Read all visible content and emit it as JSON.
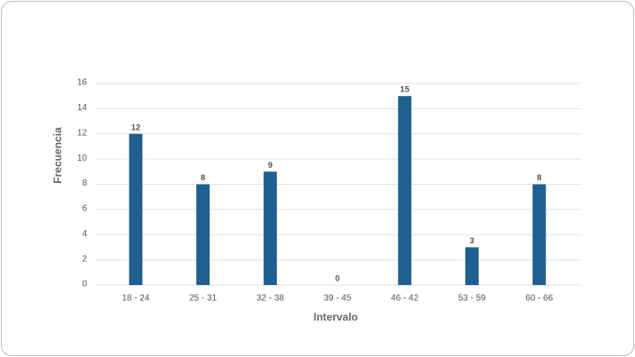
{
  "chart_data": {
    "type": "bar",
    "x_label": "Intervalo",
    "y_label": "Frecuencia",
    "categories": [
      "18 - 24",
      "25 - 31",
      "32 - 38",
      "39 - 45",
      "46 - 42",
      "53 - 59",
      "60 - 66"
    ],
    "values": [
      12,
      8,
      9,
      0,
      15,
      3,
      8
    ],
    "color": "#1f6091",
    "ylim": [
      0,
      16
    ],
    "yticks": [
      0,
      2,
      4,
      6,
      8,
      10,
      12,
      14,
      16
    ],
    "grid": true
  }
}
